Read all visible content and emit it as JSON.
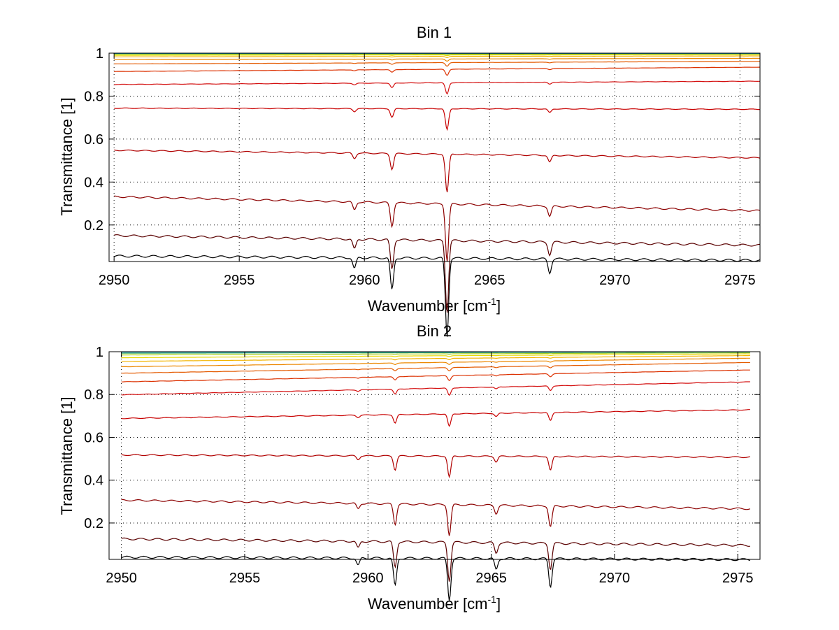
{
  "chart_data": [
    {
      "type": "line",
      "title": "Bin 1",
      "xlabel": "Wavenumber [cm",
      "xlabel_sup": "-1",
      "xlabel_close": "]",
      "ylabel": "Transmittance [1]",
      "xlim": [
        2949.8,
        2975.8
      ],
      "ylim": [
        0.03,
        1.0
      ],
      "grid": true,
      "xticks": [
        2950,
        2955,
        2960,
        2965,
        2970,
        2975
      ],
      "xtick_labels": [
        "2950",
        "2955",
        "2960",
        "2965",
        "2970",
        "2975"
      ],
      "yticks": [
        0.2,
        0.4,
        0.6,
        0.8,
        1
      ],
      "ytick_labels": [
        "0.2",
        "0.4",
        "0.6",
        "0.8",
        "1"
      ],
      "x": [
        2950.0,
        2952.5,
        2955.0,
        2957.5,
        2960.0,
        2961.1,
        2962.5,
        2963.3,
        2965.0,
        2967.4,
        2970.0,
        2972.5,
        2975.8
      ],
      "dips": [
        {
          "x": 2961.1,
          "strength": 0.35
        },
        {
          "x": 2963.3,
          "strength": 0.85
        },
        {
          "x": 2967.4,
          "strength": 0.15
        },
        {
          "x": 2959.6,
          "strength": 0.12
        }
      ],
      "series": [
        {
          "color": "#000000",
          "values": [
            0.06,
            0.055,
            0.05,
            0.048,
            0.045,
            0.044,
            0.043,
            0.035,
            0.042,
            0.04,
            0.04,
            0.04,
            0.04
          ]
        },
        {
          "color": "#5a0000",
          "values": [
            0.155,
            0.145,
            0.135,
            0.128,
            0.122,
            0.11,
            0.118,
            0.08,
            0.116,
            0.112,
            0.11,
            0.11,
            0.11
          ]
        },
        {
          "color": "#8c0000",
          "values": [
            0.335,
            0.315,
            0.3,
            0.285,
            0.28,
            0.22,
            0.275,
            0.18,
            0.27,
            0.265,
            0.265,
            0.265,
            0.27
          ]
        },
        {
          "color": "#b00000",
          "values": [
            0.55,
            0.54,
            0.535,
            0.525,
            0.52,
            0.41,
            0.52,
            0.4,
            0.515,
            0.5,
            0.51,
            0.51,
            0.515
          ]
        },
        {
          "color": "#c80000",
          "values": [
            0.745,
            0.74,
            0.74,
            0.735,
            0.735,
            0.65,
            0.735,
            0.61,
            0.735,
            0.7,
            0.735,
            0.735,
            0.74
          ]
        },
        {
          "color": "#d41010",
          "values": [
            0.855,
            0.855,
            0.86,
            0.86,
            0.86,
            0.81,
            0.86,
            0.78,
            0.86,
            0.84,
            0.86,
            0.865,
            0.87
          ]
        },
        {
          "color": "#dc3000",
          "values": [
            0.915,
            0.915,
            0.918,
            0.918,
            0.92,
            0.89,
            0.92,
            0.87,
            0.92,
            0.91,
            0.925,
            0.93,
            0.935
          ]
        },
        {
          "color": "#e45a00",
          "values": [
            0.95,
            0.95,
            0.952,
            0.952,
            0.955,
            0.94,
            0.955,
            0.925,
            0.955,
            0.95,
            0.958,
            0.96,
            0.962
          ]
        },
        {
          "color": "#ec8800",
          "values": [
            0.97,
            0.97,
            0.972,
            0.972,
            0.972,
            0.965,
            0.972,
            0.955,
            0.972,
            0.97,
            0.974,
            0.975,
            0.976
          ]
        },
        {
          "color": "#f2b400",
          "values": [
            0.983,
            0.983,
            0.984,
            0.984,
            0.984,
            0.98,
            0.984,
            0.975,
            0.984,
            0.983,
            0.985,
            0.986,
            0.987
          ]
        },
        {
          "color": "#e8d800",
          "values": [
            0.99,
            0.99,
            0.991,
            0.991,
            0.991,
            0.989,
            0.991,
            0.986,
            0.991,
            0.99,
            0.992,
            0.992,
            0.993
          ]
        },
        {
          "color": "#a8d020",
          "values": [
            0.995,
            0.995,
            0.995,
            0.995,
            0.995,
            0.994,
            0.995,
            0.993,
            0.995,
            0.995,
            0.996,
            0.996,
            0.996
          ]
        },
        {
          "color": "#40b060",
          "values": [
            0.998,
            0.998,
            0.998,
            0.998,
            0.998,
            0.997,
            0.998,
            0.996,
            0.998,
            0.998,
            0.998,
            0.998,
            0.998
          ]
        },
        {
          "color": "#0080c0",
          "values": [
            0.999,
            0.999,
            0.999,
            0.999,
            0.999,
            0.999,
            0.999,
            0.998,
            0.999,
            0.999,
            0.999,
            0.999,
            0.999
          ]
        }
      ]
    },
    {
      "type": "line",
      "title": "Bin 2",
      "xlabel": "Wavenumber [cm",
      "xlabel_sup": "-1",
      "xlabel_close": "]",
      "ylabel": "Transmittance [1]",
      "xlim": [
        2949.5,
        2975.9
      ],
      "ylim": [
        0.03,
        1.0
      ],
      "grid": true,
      "xticks": [
        2950,
        2955,
        2960,
        2965,
        2970,
        2975
      ],
      "xtick_labels": [
        "2950",
        "2955",
        "2960",
        "2965",
        "2970",
        "2975"
      ],
      "yticks": [
        0.2,
        0.4,
        0.6,
        0.8,
        1
      ],
      "ytick_labels": [
        "0.2",
        "0.4",
        "0.6",
        "0.8",
        "1"
      ],
      "x": [
        2950.0,
        2952.5,
        2955.0,
        2957.5,
        2960.0,
        2961.1,
        2962.5,
        2963.3,
        2965.2,
        2967.4,
        2970.0,
        2972.5,
        2975.5
      ],
      "dips": [
        {
          "x": 2961.1,
          "strength": 0.3
        },
        {
          "x": 2963.3,
          "strength": 0.45
        },
        {
          "x": 2965.2,
          "strength": 0.12
        },
        {
          "x": 2967.4,
          "strength": 0.3
        },
        {
          "x": 2959.6,
          "strength": 0.08
        }
      ],
      "series": [
        {
          "color": "#000000",
          "values": [
            0.045,
            0.043,
            0.04,
            0.038,
            0.036,
            0.035,
            0.035,
            0.03,
            0.035,
            0.034,
            0.034,
            0.034,
            0.034
          ]
        },
        {
          "color": "#5a0000",
          "values": [
            0.13,
            0.125,
            0.12,
            0.115,
            0.11,
            0.09,
            0.108,
            0.075,
            0.105,
            0.1,
            0.102,
            0.1,
            0.1
          ]
        },
        {
          "color": "#8c0000",
          "values": [
            0.31,
            0.3,
            0.29,
            0.28,
            0.275,
            0.22,
            0.275,
            0.19,
            0.27,
            0.22,
            0.27,
            0.27,
            0.27
          ]
        },
        {
          "color": "#b00000",
          "values": [
            0.52,
            0.515,
            0.51,
            0.505,
            0.505,
            0.42,
            0.505,
            0.4,
            0.49,
            0.42,
            0.505,
            0.505,
            0.51
          ]
        },
        {
          "color": "#c80000",
          "values": [
            0.69,
            0.695,
            0.7,
            0.705,
            0.71,
            0.65,
            0.715,
            0.64,
            0.7,
            0.65,
            0.72,
            0.72,
            0.73
          ]
        },
        {
          "color": "#d41010",
          "values": [
            0.8,
            0.81,
            0.82,
            0.83,
            0.835,
            0.8,
            0.84,
            0.8,
            0.825,
            0.78,
            0.845,
            0.85,
            0.86
          ]
        },
        {
          "color": "#dc3000",
          "values": [
            0.86,
            0.87,
            0.88,
            0.89,
            0.895,
            0.87,
            0.9,
            0.87,
            0.89,
            0.87,
            0.905,
            0.91,
            0.915
          ]
        },
        {
          "color": "#e45a00",
          "values": [
            0.9,
            0.91,
            0.92,
            0.93,
            0.935,
            0.92,
            0.938,
            0.91,
            0.935,
            0.92,
            0.942,
            0.945,
            0.95
          ]
        },
        {
          "color": "#ec8800",
          "values": [
            0.93,
            0.94,
            0.948,
            0.955,
            0.96,
            0.95,
            0.962,
            0.945,
            0.96,
            0.955,
            0.965,
            0.967,
            0.97
          ]
        },
        {
          "color": "#f2b400",
          "values": [
            0.955,
            0.962,
            0.968,
            0.972,
            0.975,
            0.97,
            0.977,
            0.965,
            0.976,
            0.972,
            0.979,
            0.98,
            0.982
          ]
        },
        {
          "color": "#e8d800",
          "values": [
            0.972,
            0.977,
            0.981,
            0.984,
            0.986,
            0.983,
            0.987,
            0.98,
            0.986,
            0.984,
            0.988,
            0.989,
            0.99
          ]
        },
        {
          "color": "#a8d020",
          "values": [
            0.985,
            0.988,
            0.99,
            0.992,
            0.993,
            0.991,
            0.993,
            0.99,
            0.993,
            0.992,
            0.994,
            0.994,
            0.995
          ]
        },
        {
          "color": "#40b060",
          "values": [
            0.993,
            0.995,
            0.996,
            0.996,
            0.997,
            0.996,
            0.997,
            0.995,
            0.997,
            0.996,
            0.997,
            0.997,
            0.998
          ]
        },
        {
          "color": "#0080c0",
          "values": [
            0.998,
            0.998,
            0.999,
            0.999,
            0.999,
            0.999,
            0.999,
            0.998,
            0.999,
            0.999,
            0.999,
            0.999,
            0.999
          ]
        }
      ]
    }
  ]
}
